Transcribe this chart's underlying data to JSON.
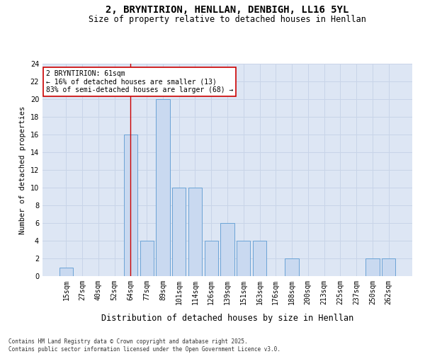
{
  "title": "2, BRYNTIRION, HENLLAN, DENBIGH, LL16 5YL",
  "subtitle": "Size of property relative to detached houses in Henllan",
  "xlabel": "Distribution of detached houses by size in Henllan",
  "ylabel": "Number of detached properties",
  "footer": "Contains HM Land Registry data © Crown copyright and database right 2025.\nContains public sector information licensed under the Open Government Licence v3.0.",
  "bins": [
    "15sqm",
    "27sqm",
    "40sqm",
    "52sqm",
    "64sqm",
    "77sqm",
    "89sqm",
    "101sqm",
    "114sqm",
    "126sqm",
    "139sqm",
    "151sqm",
    "163sqm",
    "176sqm",
    "188sqm",
    "200sqm",
    "213sqm",
    "225sqm",
    "237sqm",
    "250sqm",
    "262sqm"
  ],
  "values": [
    1,
    0,
    0,
    0,
    16,
    4,
    20,
    10,
    10,
    4,
    6,
    4,
    4,
    0,
    2,
    0,
    0,
    0,
    0,
    2,
    2
  ],
  "bar_color": "#c9d9f0",
  "bar_edge_color": "#6ba3d6",
  "red_line_index": 4,
  "annotation_text": "2 BRYNTIRION: 61sqm\n← 16% of detached houses are smaller (13)\n83% of semi-detached houses are larger (68) →",
  "annotation_box_color": "#ffffff",
  "annotation_box_edge_color": "#cc0000",
  "ylim": [
    0,
    24
  ],
  "yticks": [
    0,
    2,
    4,
    6,
    8,
    10,
    12,
    14,
    16,
    18,
    20,
    22,
    24
  ],
  "grid_color": "#c8d4e8",
  "background_color": "#dde6f4",
  "title_fontsize": 10,
  "subtitle_fontsize": 8.5,
  "xlabel_fontsize": 8.5,
  "ylabel_fontsize": 7.5,
  "tick_fontsize": 7,
  "annotation_fontsize": 7,
  "footer_fontsize": 5.5
}
